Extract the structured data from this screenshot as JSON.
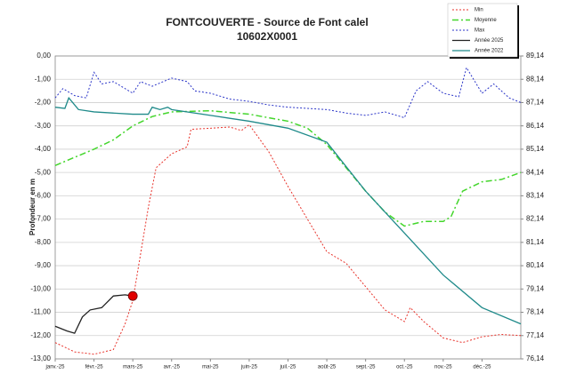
{
  "chart_data": {
    "type": "line",
    "title": "FONTCOUVERTE - Source de Font calel",
    "subtitle": "10602X0001",
    "y_label": "Profondeur en m",
    "xlim": [
      0,
      12
    ],
    "xticks": [
      {
        "value": 0,
        "label": "janv.-25"
      },
      {
        "value": 1,
        "label": "févr.-25"
      },
      {
        "value": 2,
        "label": "mars-25"
      },
      {
        "value": 3,
        "label": "avr.-25"
      },
      {
        "value": 4,
        "label": "mai-25"
      },
      {
        "value": 5,
        "label": "juin-25"
      },
      {
        "value": 6,
        "label": "juil.-25"
      },
      {
        "value": 7,
        "label": "août-25"
      },
      {
        "value": 8,
        "label": "sept.-25"
      },
      {
        "value": 9,
        "label": "oct.-25"
      },
      {
        "value": 10,
        "label": "nov.-25"
      },
      {
        "value": 11,
        "label": "déc.-25"
      }
    ],
    "ylim": [
      -13,
      0
    ],
    "yticks": [
      {
        "value": 0,
        "label": "0,00"
      },
      {
        "value": -1,
        "label": "-1,00"
      },
      {
        "value": -2,
        "label": "-2,00"
      },
      {
        "value": -3,
        "label": "-3,00"
      },
      {
        "value": -4,
        "label": "-4,00"
      },
      {
        "value": -5,
        "label": "-5,00"
      },
      {
        "value": -6,
        "label": "-6,00"
      },
      {
        "value": -7,
        "label": "-7,00"
      },
      {
        "value": -8,
        "label": "-8,00"
      },
      {
        "value": -9,
        "label": "-9,00"
      },
      {
        "value": -10,
        "label": "-10,00"
      },
      {
        "value": -11,
        "label": "-11,00"
      },
      {
        "value": -12,
        "label": "-12,00"
      },
      {
        "value": -13,
        "label": "-13,00"
      }
    ],
    "y2lim": [
      76.14,
      89.14
    ],
    "y2ticks": [
      {
        "value": 89.14,
        "label": "89,14"
      },
      {
        "value": 88.14,
        "label": "88,14"
      },
      {
        "value": 87.14,
        "label": "87,14"
      },
      {
        "value": 86.14,
        "label": "86,14"
      },
      {
        "value": 85.14,
        "label": "85,14"
      },
      {
        "value": 84.14,
        "label": "84,14"
      },
      {
        "value": 83.14,
        "label": "83,14"
      },
      {
        "value": 82.14,
        "label": "82,14"
      },
      {
        "value": 81.14,
        "label": "81,14"
      },
      {
        "value": 80.14,
        "label": "80,14"
      },
      {
        "value": 79.14,
        "label": "79,14"
      },
      {
        "value": 78.14,
        "label": "78,14"
      },
      {
        "value": 77.14,
        "label": "77,14"
      },
      {
        "value": 76.14,
        "label": "76,14"
      }
    ],
    "grid": true,
    "legend": "top-right",
    "series": [
      {
        "name": "Min",
        "color": "#e8322a",
        "dash": "2,2",
        "width": 1,
        "x": [
          0,
          0.5,
          1,
          1.5,
          1.8,
          2,
          2.2,
          2.4,
          2.6,
          3,
          3.4,
          3.5,
          4,
          4.5,
          4.8,
          5,
          5.5,
          6,
          6.5,
          7,
          7.5,
          8,
          8.5,
          9,
          9.15,
          9.5,
          10,
          10.5,
          11,
          11.5,
          12
        ],
        "values": [
          -12.3,
          -12.7,
          -12.8,
          -12.6,
          -11.5,
          -10.5,
          -8.5,
          -6.5,
          -4.8,
          -4.2,
          -3.9,
          -3.15,
          -3.1,
          -3.05,
          -3.2,
          -2.95,
          -4.1,
          -5.6,
          -7,
          -8.4,
          -8.9,
          -9.9,
          -10.9,
          -11.4,
          -10.8,
          -11.4,
          -12.1,
          -12.3,
          -12.05,
          -11.95,
          -12.0
        ]
      },
      {
        "name": "Moyenne",
        "color": "#44d62c",
        "dash": "7,3,2,3",
        "width": 1.5,
        "x": [
          0,
          1,
          1.5,
          2,
          2.5,
          3,
          4,
          5,
          6,
          6.5,
          7,
          7.5,
          8,
          8.5,
          9,
          9.5,
          10,
          10.2,
          10.5,
          11,
          11.5,
          12
        ],
        "values": [
          -4.7,
          -4.0,
          -3.6,
          -3.0,
          -2.6,
          -2.4,
          -2.35,
          -2.5,
          -2.8,
          -3.1,
          -3.8,
          -4.8,
          -5.8,
          -6.7,
          -7.3,
          -7.1,
          -7.1,
          -6.9,
          -5.8,
          -5.4,
          -5.3,
          -5.0
        ]
      },
      {
        "name": "Max",
        "color": "#2b35c8",
        "dash": "2,2",
        "width": 1,
        "x": [
          0,
          0.2,
          0.5,
          0.8,
          1,
          1.2,
          1.5,
          2,
          2.2,
          2.5,
          3,
          3.4,
          3.6,
          4,
          4.5,
          5,
          5.5,
          6,
          7,
          7.5,
          8,
          8.5,
          9,
          9.3,
          9.6,
          10,
          10.4,
          10.6,
          11,
          11.3,
          11.7,
          12
        ],
        "values": [
          -1.8,
          -1.4,
          -1.7,
          -1.8,
          -0.7,
          -1.2,
          -1.1,
          -1.6,
          -1.1,
          -1.3,
          -0.95,
          -1.1,
          -1.5,
          -1.6,
          -1.85,
          -1.95,
          -2.1,
          -2.2,
          -2.3,
          -2.45,
          -2.55,
          -2.4,
          -2.65,
          -1.5,
          -1.1,
          -1.6,
          -1.75,
          -0.5,
          -1.6,
          -1.2,
          -1.8,
          -2.0
        ]
      },
      {
        "name": "Année 2025",
        "color": "#222222",
        "width": 1.3,
        "last_point_marker": "#e00000",
        "x": [
          0,
          0.3,
          0.5,
          0.7,
          0.9,
          1.2,
          1.5,
          1.8,
          2
        ],
        "values": [
          -11.6,
          -11.8,
          -11.9,
          -11.2,
          -10.9,
          -10.8,
          -10.3,
          -10.25,
          -10.3
        ]
      },
      {
        "name": "Année 2022",
        "color": "#1f8a8a",
        "width": 1.3,
        "x": [
          0,
          0.25,
          0.35,
          0.6,
          1,
          2,
          2.4,
          2.5,
          2.7,
          2.9,
          3,
          4,
          5,
          6,
          7,
          8,
          9,
          10,
          11,
          12
        ],
        "values": [
          -2.2,
          -2.25,
          -1.8,
          -2.3,
          -2.4,
          -2.5,
          -2.5,
          -2.2,
          -2.3,
          -2.2,
          -2.3,
          -2.55,
          -2.8,
          -3.1,
          -3.7,
          -5.8,
          -7.6,
          -9.4,
          -10.8,
          -11.5
        ]
      }
    ]
  }
}
